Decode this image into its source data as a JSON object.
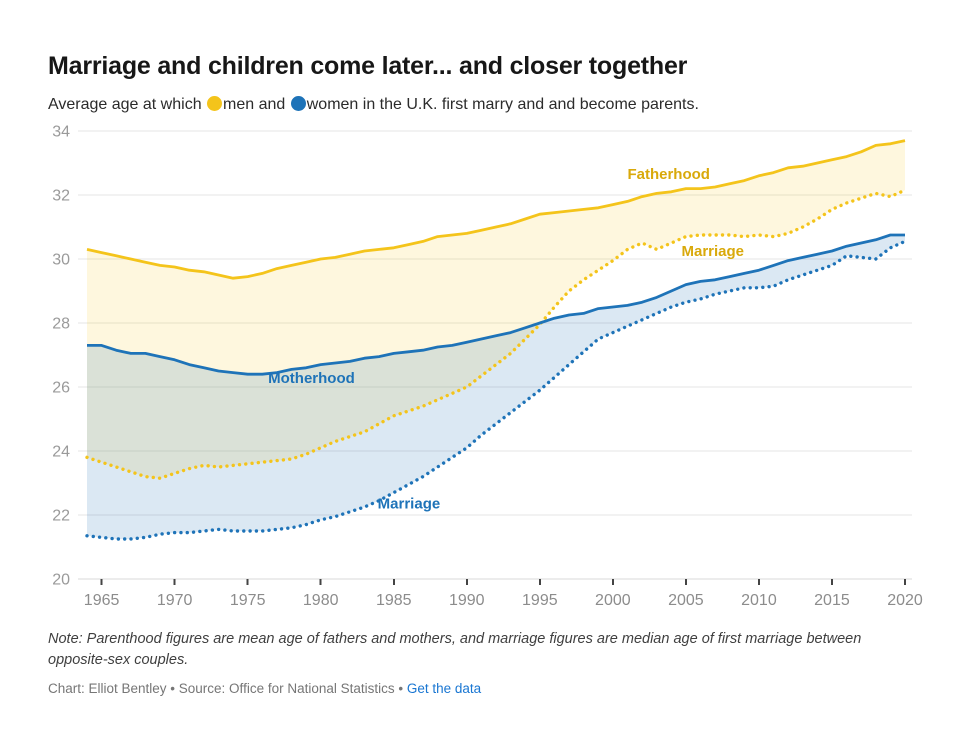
{
  "header": {
    "title": "Marriage and children come later... and closer together",
    "subtitle_prefix": "Average age at which ",
    "men_label": "men and ",
    "women_label": "women in the U.K. first marry and and become parents.",
    "men_color": "#F4C41B",
    "women_color": "#1E73B8"
  },
  "footer": {
    "note": "Note: Parenthood figures are mean age of fathers and mothers, and marriage figures are median age of first marriage between opposite-sex couples.",
    "credit_prefix": "Chart: Elliot Bentley • Source: Office for National Statistics • ",
    "link_label": "Get the data"
  },
  "chart_data": {
    "type": "line",
    "title": "Marriage and children come later... and closer together",
    "subtitle": "Average age at which men and women in the U.K. first marry and and become parents.",
    "xlabel": "",
    "ylabel": "",
    "ylim": [
      20,
      34
    ],
    "yticks": [
      20,
      22,
      24,
      26,
      28,
      30,
      32,
      34
    ],
    "xticks": [
      1965,
      1970,
      1975,
      1980,
      1985,
      1990,
      1995,
      2000,
      2005,
      2010,
      2015,
      2020
    ],
    "grid": true,
    "legend_position": "inline-labels",
    "x": [
      1964,
      1965,
      1966,
      1967,
      1968,
      1969,
      1970,
      1971,
      1972,
      1973,
      1974,
      1975,
      1976,
      1977,
      1978,
      1979,
      1980,
      1981,
      1982,
      1983,
      1984,
      1985,
      1986,
      1987,
      1988,
      1989,
      1990,
      1991,
      1992,
      1993,
      1994,
      1995,
      1996,
      1997,
      1998,
      1999,
      2000,
      2001,
      2002,
      2003,
      2004,
      2005,
      2006,
      2007,
      2008,
      2009,
      2010,
      2011,
      2012,
      2013,
      2014,
      2015,
      2016,
      2017,
      2018,
      2019,
      2020
    ],
    "series": [
      {
        "name": "Fatherhood",
        "label": "Fatherhood",
        "group": "men",
        "line_style": "solid",
        "color": "#F4C41B",
        "values": [
          30.3,
          30.2,
          30.1,
          30.0,
          29.9,
          29.8,
          29.75,
          29.65,
          29.6,
          29.5,
          29.4,
          29.45,
          29.55,
          29.7,
          29.8,
          29.9,
          30.0,
          30.05,
          30.15,
          30.25,
          30.3,
          30.35,
          30.45,
          30.55,
          30.7,
          30.75,
          30.8,
          30.9,
          31.0,
          31.1,
          31.25,
          31.4,
          31.45,
          31.5,
          31.55,
          31.6,
          31.7,
          31.8,
          31.95,
          32.05,
          32.1,
          32.2,
          32.2,
          32.25,
          32.35,
          32.45,
          32.6,
          32.7,
          32.85,
          32.9,
          33.0,
          33.1,
          33.2,
          33.35,
          33.55,
          33.6,
          33.7
        ]
      },
      {
        "name": "Marriage (men)",
        "label": "Marriage",
        "group": "men",
        "line_style": "dotted",
        "color": "#F4C41B",
        "values": [
          23.8,
          23.65,
          23.5,
          23.35,
          23.2,
          23.15,
          23.3,
          23.45,
          23.55,
          23.5,
          23.55,
          23.6,
          23.65,
          23.7,
          23.75,
          23.9,
          24.1,
          24.3,
          24.45,
          24.6,
          24.85,
          25.1,
          25.25,
          25.4,
          25.6,
          25.8,
          26.0,
          26.35,
          26.7,
          27.05,
          27.5,
          27.95,
          28.5,
          29.0,
          29.35,
          29.65,
          29.95,
          30.3,
          30.5,
          30.3,
          30.5,
          30.7,
          30.75,
          30.75,
          30.75,
          30.7,
          30.75,
          30.7,
          30.8,
          31.0,
          31.25,
          31.55,
          31.75,
          31.9,
          32.05,
          31.95,
          32.15
        ]
      },
      {
        "name": "Motherhood",
        "label": "Motherhood",
        "group": "women",
        "line_style": "solid",
        "color": "#1E73B8",
        "values": [
          27.3,
          27.3,
          27.15,
          27.05,
          27.05,
          26.95,
          26.85,
          26.7,
          26.6,
          26.5,
          26.45,
          26.4,
          26.4,
          26.45,
          26.55,
          26.6,
          26.7,
          26.75,
          26.8,
          26.9,
          26.95,
          27.05,
          27.1,
          27.15,
          27.25,
          27.3,
          27.4,
          27.5,
          27.6,
          27.7,
          27.85,
          28.0,
          28.15,
          28.25,
          28.3,
          28.45,
          28.5,
          28.55,
          28.65,
          28.8,
          29.0,
          29.2,
          29.3,
          29.35,
          29.45,
          29.55,
          29.65,
          29.8,
          29.95,
          30.05,
          30.15,
          30.25,
          30.4,
          30.5,
          30.6,
          30.75,
          30.75
        ]
      },
      {
        "name": "Marriage (women)",
        "label": "Marriage",
        "group": "women",
        "line_style": "dotted",
        "color": "#1E73B8",
        "values": [
          21.35,
          21.3,
          21.25,
          21.25,
          21.3,
          21.4,
          21.45,
          21.45,
          21.5,
          21.55,
          21.5,
          21.5,
          21.5,
          21.55,
          21.6,
          21.7,
          21.85,
          21.95,
          22.1,
          22.25,
          22.45,
          22.7,
          22.95,
          23.2,
          23.5,
          23.8,
          24.1,
          24.5,
          24.85,
          25.2,
          25.55,
          25.9,
          26.3,
          26.7,
          27.1,
          27.5,
          27.7,
          27.9,
          28.1,
          28.3,
          28.5,
          28.65,
          28.75,
          28.9,
          29.0,
          29.1,
          29.1,
          29.15,
          29.35,
          29.5,
          29.65,
          29.8,
          30.1,
          30.05,
          30.0,
          30.35,
          30.55
        ]
      }
    ],
    "bands": [
      {
        "upper": "Fatherhood",
        "lower": "Marriage (men)",
        "color": "rgba(246,198,32,0.15)"
      },
      {
        "upper": "Motherhood",
        "lower": "Marriage (women)",
        "color": "rgba(31,112,183,0.16)"
      }
    ],
    "annotations": [
      {
        "text": "Fatherhood",
        "x": 2001.0,
        "y": 32.5,
        "color": "#D9A90B"
      },
      {
        "text": "Marriage",
        "x": 2004.7,
        "y": 30.1,
        "color": "#D9A90B"
      },
      {
        "text": "Motherhood",
        "x": 1976.4,
        "y": 26.12,
        "color": "#1E73B8"
      },
      {
        "text": "Marriage",
        "x": 1983.9,
        "y": 22.2,
        "color": "#1E73B8"
      }
    ]
  }
}
